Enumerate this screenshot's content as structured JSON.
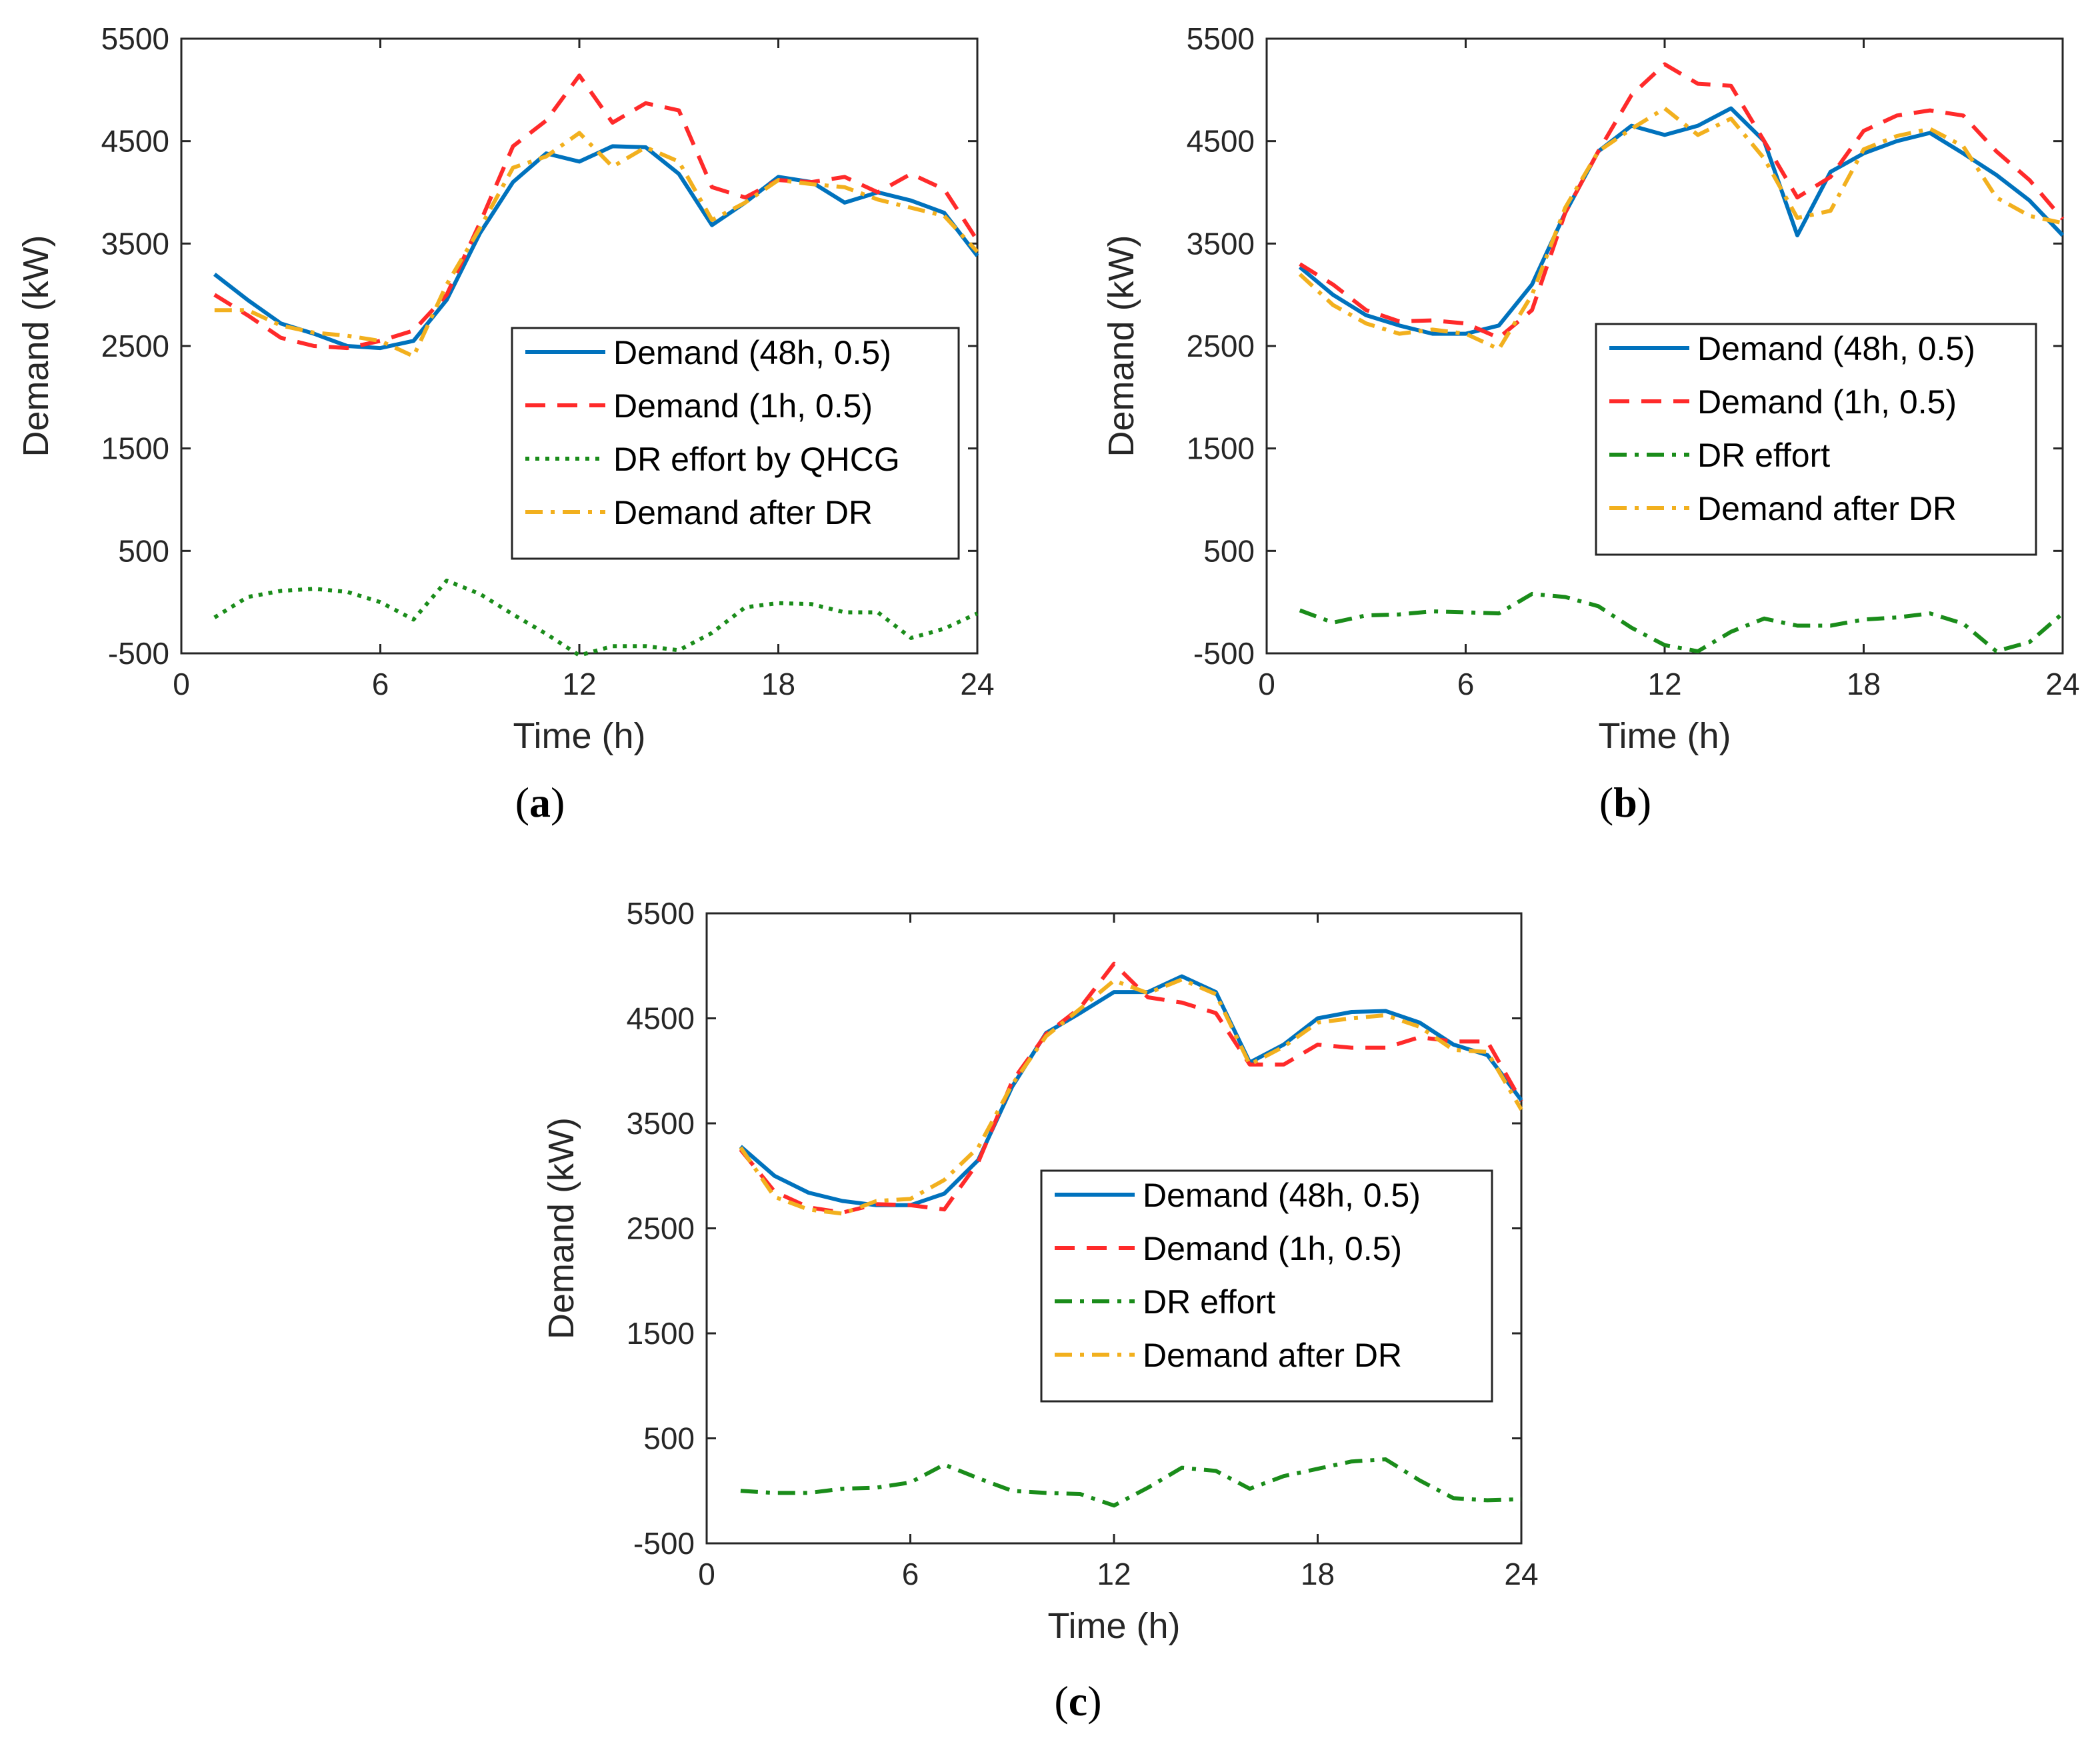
{
  "figure": {
    "colors": {
      "blue": "#0072bd",
      "red": "#ff2a2a",
      "green": "#1a8c1a",
      "orange": "#f2b01e",
      "axis": "#262626"
    },
    "x_ticks": [
      "0",
      "6",
      "12",
      "18",
      "24"
    ],
    "y_ticks": [
      "-500",
      "500",
      "1500",
      "2500",
      "3500",
      "4500",
      "5500"
    ]
  },
  "chart_data": [
    {
      "panel": "a",
      "caption_letter": "a",
      "type": "line",
      "xlabel": "Time (h)",
      "ylabel": "Demand (kW)",
      "xlim": [
        0,
        24
      ],
      "ylim": [
        -500,
        5500
      ],
      "legend_position": "center-right",
      "x": [
        1,
        2,
        3,
        4,
        5,
        6,
        7,
        8,
        9,
        10,
        11,
        12,
        13,
        14,
        15,
        16,
        17,
        18,
        19,
        20,
        21,
        22,
        23,
        24
      ],
      "series": [
        {
          "name": "Demand (48h, 0.5)",
          "style": "solid",
          "color": "blue",
          "values": [
            3200,
            2950,
            2720,
            2620,
            2500,
            2480,
            2550,
            2950,
            3600,
            4100,
            4380,
            4300,
            4450,
            4440,
            4180,
            3680,
            3900,
            4150,
            4100,
            3900,
            4000,
            3920,
            3800,
            3380
          ]
        },
        {
          "name": "Demand (1h, 0.5)",
          "style": "dashed",
          "color": "red",
          "values": [
            3000,
            2800,
            2580,
            2500,
            2480,
            2550,
            2650,
            3000,
            3700,
            4450,
            4700,
            5140,
            4680,
            4870,
            4800,
            4050,
            3950,
            4120,
            4100,
            4150,
            4000,
            4180,
            4030,
            3530
          ]
        },
        {
          "name": "DR effort by QHCG",
          "style": "dotted",
          "color": "green",
          "values": [
            -150,
            50,
            110,
            130,
            100,
            0,
            -170,
            210,
            80,
            -120,
            -310,
            -520,
            -430,
            -430,
            -470,
            -300,
            -50,
            -10,
            -20,
            -100,
            -100,
            -350,
            -260,
            -110
          ]
        },
        {
          "name": "Demand after DR",
          "style": "dashdot",
          "color": "orange",
          "values": [
            2850,
            2850,
            2700,
            2630,
            2600,
            2550,
            2400,
            3100,
            3650,
            4240,
            4350,
            4580,
            4250,
            4440,
            4300,
            3730,
            3900,
            4120,
            4080,
            4050,
            3930,
            3850,
            3770,
            3420
          ]
        }
      ]
    },
    {
      "panel": "b",
      "caption_letter": "b",
      "type": "line",
      "xlabel": "Time (h)",
      "ylabel": "Demand (kW)",
      "xlim": [
        0,
        24
      ],
      "ylim": [
        -500,
        5500
      ],
      "legend_position": "center-right",
      "x": [
        1,
        2,
        3,
        4,
        5,
        6,
        7,
        8,
        9,
        10,
        11,
        12,
        13,
        14,
        15,
        16,
        17,
        18,
        19,
        20,
        21,
        22,
        23,
        24
      ],
      "series": [
        {
          "name": "Demand (48h, 0.5)",
          "style": "solid",
          "color": "blue",
          "values": [
            3270,
            3000,
            2800,
            2700,
            2620,
            2620,
            2700,
            3100,
            3800,
            4400,
            4650,
            4560,
            4650,
            4820,
            4500,
            3580,
            4200,
            4380,
            4500,
            4580,
            4380,
            4170,
            3920,
            3580
          ]
        },
        {
          "name": "Demand (1h, 0.5)",
          "style": "dashed",
          "color": "red",
          "values": [
            3300,
            3100,
            2850,
            2740,
            2750,
            2720,
            2580,
            2850,
            3800,
            4400,
            4950,
            5250,
            5060,
            5040,
            4500,
            3950,
            4150,
            4600,
            4750,
            4800,
            4750,
            4400,
            4120,
            3740
          ]
        },
        {
          "name": "DR effort",
          "style": "dashdot",
          "color": "green",
          "values": [
            -80,
            -200,
            -130,
            -120,
            -90,
            -100,
            -110,
            80,
            50,
            -40,
            -250,
            -420,
            -480,
            -290,
            -160,
            -230,
            -230,
            -170,
            -150,
            -110,
            -210,
            -480,
            -390,
            -110
          ]
        },
        {
          "name": "Demand after DR",
          "style": "dashdot",
          "color": "orange",
          "values": [
            3200,
            2900,
            2720,
            2620,
            2660,
            2620,
            2470,
            3000,
            3850,
            4400,
            4620,
            4820,
            4560,
            4720,
            4330,
            3750,
            3820,
            4420,
            4550,
            4620,
            4450,
            3950,
            3770,
            3700
          ]
        }
      ]
    },
    {
      "panel": "c",
      "caption_letter": "c",
      "type": "line",
      "xlabel": "Time (h)",
      "ylabel": "Demand (kW)",
      "xlim": [
        0,
        24
      ],
      "ylim": [
        -500,
        5500
      ],
      "legend_position": "center-right",
      "x": [
        1,
        2,
        3,
        4,
        5,
        6,
        7,
        8,
        9,
        10,
        11,
        12,
        13,
        14,
        15,
        16,
        17,
        18,
        19,
        20,
        21,
        22,
        23,
        24
      ],
      "series": [
        {
          "name": "Demand (48h, 0.5)",
          "style": "solid",
          "color": "blue",
          "values": [
            3280,
            3000,
            2840,
            2760,
            2720,
            2720,
            2830,
            3150,
            3850,
            4360,
            4550,
            4750,
            4750,
            4900,
            4750,
            4080,
            4250,
            4500,
            4560,
            4570,
            4460,
            4250,
            4150,
            3720
          ]
        },
        {
          "name": "Demand (1h, 0.5)",
          "style": "dashed",
          "color": "red",
          "values": [
            3250,
            2850,
            2700,
            2650,
            2730,
            2720,
            2680,
            3130,
            3900,
            4350,
            4600,
            5020,
            4700,
            4650,
            4550,
            4060,
            4060,
            4250,
            4220,
            4220,
            4320,
            4280,
            4280,
            3710
          ]
        },
        {
          "name": "DR effort",
          "style": "dashdot",
          "color": "green",
          "values": [
            0,
            -20,
            -20,
            20,
            30,
            80,
            250,
            120,
            0,
            -20,
            -30,
            -140,
            30,
            220,
            190,
            20,
            140,
            210,
            280,
            300,
            100,
            -70,
            -90,
            -80
          ]
        },
        {
          "name": "Demand after DR",
          "style": "dashdot",
          "color": "orange",
          "values": [
            3270,
            2800,
            2680,
            2640,
            2760,
            2780,
            2960,
            3270,
            3870,
            4330,
            4590,
            4860,
            4740,
            4870,
            4730,
            4060,
            4230,
            4460,
            4500,
            4530,
            4420,
            4200,
            4180,
            3630
          ]
        }
      ]
    }
  ]
}
